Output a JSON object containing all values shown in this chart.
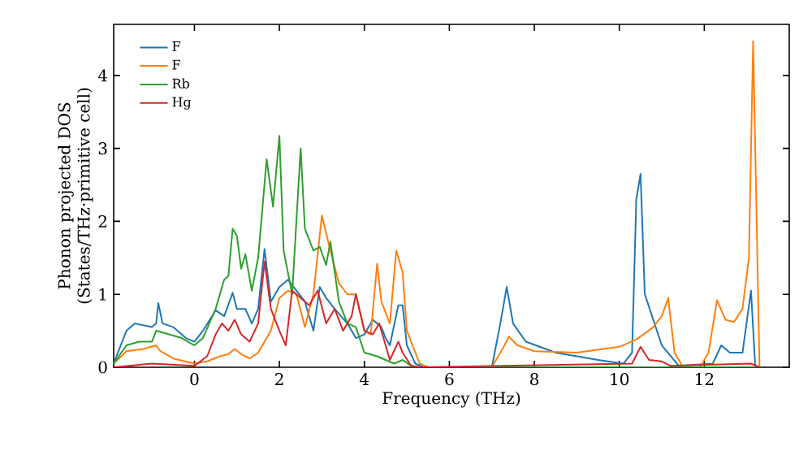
{
  "chart_data": {
    "type": "line",
    "xlabel": "Frequency (THz)",
    "ylabel": "Phonon projected DOS (States/THz·primitive cell)",
    "xlim": [
      -1.9,
      14
    ],
    "ylim": [
      0,
      4.7
    ],
    "xticks": [
      0,
      2,
      4,
      6,
      8,
      10,
      12
    ],
    "yticks": [
      0,
      1,
      2,
      3,
      4
    ],
    "legend": "top left",
    "series": [
      {
        "name": "F",
        "color": "#1f77b4",
        "x": [
          -1.9,
          -1.6,
          -1.4,
          -1.0,
          -0.9,
          -0.85,
          -0.75,
          -0.5,
          -0.2,
          0,
          0.2,
          0.5,
          0.7,
          0.9,
          1.0,
          1.2,
          1.35,
          1.5,
          1.65,
          1.8,
          2.0,
          2.2,
          2.4,
          2.6,
          2.8,
          2.95,
          3.1,
          3.3,
          3.6,
          3.8,
          4.0,
          4.2,
          4.4,
          4.5,
          4.6,
          4.8,
          4.9,
          5.0,
          5.2,
          5.4,
          7.0,
          7.2,
          7.35,
          7.5,
          7.8,
          8.5,
          9.5,
          10.1,
          10.3,
          10.4,
          10.5,
          10.6,
          11.0,
          11.4,
          12.2,
          12.4,
          12.6,
          12.9,
          13.1,
          13.2
        ],
        "values": [
          0.05,
          0.5,
          0.6,
          0.55,
          0.6,
          0.88,
          0.6,
          0.55,
          0.4,
          0.35,
          0.5,
          0.78,
          0.7,
          1.02,
          0.8,
          0.8,
          0.6,
          0.8,
          1.62,
          0.9,
          1.1,
          1.2,
          1.05,
          0.9,
          0.5,
          1.1,
          0.95,
          0.8,
          0.6,
          0.4,
          0.45,
          0.65,
          0.55,
          0.4,
          0.3,
          0.85,
          0.85,
          0.3,
          0.05,
          0,
          0,
          0.6,
          1.1,
          0.6,
          0.35,
          0.2,
          0.1,
          0.05,
          0.2,
          2.3,
          2.65,
          1.0,
          0.3,
          0.02,
          0.05,
          0.3,
          0.2,
          0.2,
          1.05,
          0
        ]
      },
      {
        "name": "F",
        "color": "#ff7f0e",
        "x": [
          -1.9,
          -1.6,
          -1.2,
          -0.9,
          -0.8,
          -0.5,
          0,
          0.3,
          0.6,
          0.8,
          0.95,
          1.1,
          1.3,
          1.5,
          1.8,
          2.0,
          2.2,
          2.4,
          2.6,
          2.8,
          3.0,
          3.2,
          3.4,
          3.6,
          3.8,
          4.0,
          4.15,
          4.3,
          4.4,
          4.6,
          4.75,
          4.9,
          5.0,
          5.3,
          5.5,
          7.0,
          7.3,
          7.4,
          7.6,
          8.0,
          9.0,
          10.0,
          10.4,
          10.8,
          11.0,
          11.15,
          11.3,
          11.5,
          11.9,
          12.1,
          12.3,
          12.5,
          12.7,
          12.9,
          13.05,
          13.15,
          13.3
        ],
        "values": [
          0.05,
          0.22,
          0.25,
          0.3,
          0.22,
          0.12,
          0.05,
          0.08,
          0.15,
          0.18,
          0.25,
          0.18,
          0.12,
          0.2,
          0.5,
          0.95,
          1.05,
          1.0,
          0.55,
          1.0,
          2.08,
          1.6,
          1.15,
          1.0,
          1.0,
          0.5,
          0.45,
          1.42,
          0.9,
          0.6,
          1.6,
          1.3,
          0.5,
          0.05,
          0,
          0,
          0.3,
          0.42,
          0.3,
          0.22,
          0.2,
          0.28,
          0.38,
          0.55,
          0.7,
          0.95,
          0.2,
          0,
          0,
          0.2,
          0.92,
          0.65,
          0.62,
          0.8,
          1.5,
          4.47,
          0
        ]
      },
      {
        "name": "Rb",
        "color": "#2ca02c",
        "x": [
          -1.9,
          -1.6,
          -1.3,
          -1.0,
          -0.9,
          -0.6,
          -0.3,
          0,
          0.2,
          0.5,
          0.7,
          0.8,
          0.9,
          1.0,
          1.1,
          1.2,
          1.35,
          1.5,
          1.7,
          1.85,
          2.0,
          2.1,
          2.3,
          2.5,
          2.6,
          2.8,
          2.95,
          3.1,
          3.2,
          3.4,
          3.6,
          3.8,
          4.0,
          4.3,
          4.5,
          4.7,
          4.9,
          5.1,
          5.3,
          13.3
        ],
        "values": [
          0.05,
          0.3,
          0.35,
          0.35,
          0.5,
          0.45,
          0.4,
          0.3,
          0.4,
          0.8,
          1.2,
          1.25,
          1.9,
          1.8,
          1.35,
          1.55,
          1.05,
          1.5,
          2.85,
          2.2,
          3.17,
          1.6,
          1.0,
          3.0,
          1.9,
          1.6,
          1.65,
          1.4,
          1.72,
          0.9,
          0.6,
          0.55,
          0.2,
          0.15,
          0.1,
          0.05,
          0.1,
          0.02,
          0,
          0
        ]
      },
      {
        "name": "Hg",
        "color": "#d62728",
        "x": [
          -1.9,
          -1.0,
          0,
          0.3,
          0.5,
          0.65,
          0.8,
          0.95,
          1.1,
          1.3,
          1.5,
          1.65,
          1.8,
          2.0,
          2.15,
          2.3,
          2.5,
          2.7,
          2.9,
          3.1,
          3.3,
          3.5,
          3.7,
          3.8,
          4.0,
          4.2,
          4.35,
          4.5,
          4.6,
          4.8,
          4.9,
          5.1,
          5.3,
          10.3,
          10.5,
          10.7,
          11.0,
          11.2,
          13.1,
          13.3
        ],
        "values": [
          0,
          0.05,
          0.02,
          0.15,
          0.45,
          0.6,
          0.5,
          0.65,
          0.45,
          0.35,
          0.6,
          1.45,
          0.8,
          0.5,
          0.3,
          1.05,
          0.95,
          0.85,
          1.05,
          0.6,
          0.8,
          0.5,
          0.7,
          1.0,
          0.5,
          0.45,
          0.6,
          0.3,
          0.1,
          0.35,
          0.2,
          0.02,
          0,
          0.05,
          0.28,
          0.1,
          0.08,
          0.02,
          0.05,
          0
        ]
      }
    ]
  }
}
